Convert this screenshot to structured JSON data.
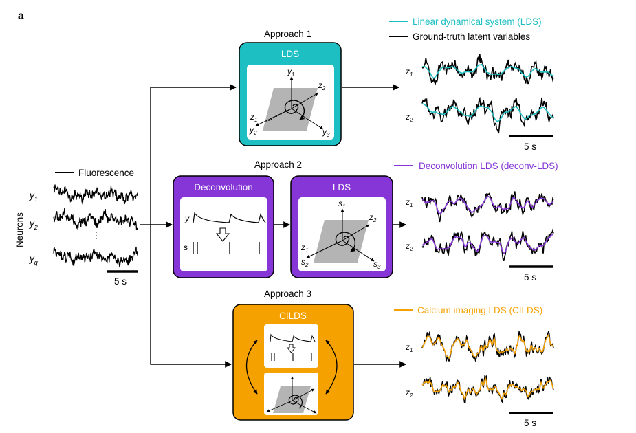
{
  "panel_letter": "a",
  "colors": {
    "lds": "#1DBFC2",
    "deconv": "#8636D6",
    "cilds": "#F5A100",
    "truth": "#000000",
    "plane": "#b4b4b4"
  },
  "approach1": {
    "title": "Approach 1",
    "box_label": "LDS"
  },
  "approach2": {
    "title": "Approach 2",
    "deconv_label": "Deconvolution",
    "lds_label": "LDS",
    "y_label": "y",
    "s_label": "s"
  },
  "approach3": {
    "title": "Approach 3",
    "box_label": "CILDS"
  },
  "input": {
    "legend": "Fluorescence",
    "axis_label": "Neurons",
    "neurons": [
      {
        "base": "y",
        "sub": "1"
      },
      {
        "base": "y",
        "sub": "2"
      },
      {
        "base": "y",
        "sub": "q"
      }
    ],
    "ellipsis": "⋮",
    "scalebar": "5 s"
  },
  "axes": {
    "lds1": [
      "y1",
      "z2",
      "z1",
      "y2",
      "y3"
    ],
    "lds2": [
      "s1",
      "z2",
      "z1",
      "s2",
      "s3"
    ]
  },
  "outputs": [
    {
      "legend": "Linear dynamical system (LDS)",
      "legend2": "Ground-truth latent variables",
      "scalebar": "5 s"
    },
    {
      "legend": "Deconvolution LDS (deconv-LDS)",
      "scalebar": "5 s"
    },
    {
      "legend": "Calcium imaging LDS (CILDS)",
      "scalebar": "5 s"
    }
  ],
  "latents": [
    {
      "base": "z",
      "sub": "1"
    },
    {
      "base": "z",
      "sub": "2"
    }
  ]
}
